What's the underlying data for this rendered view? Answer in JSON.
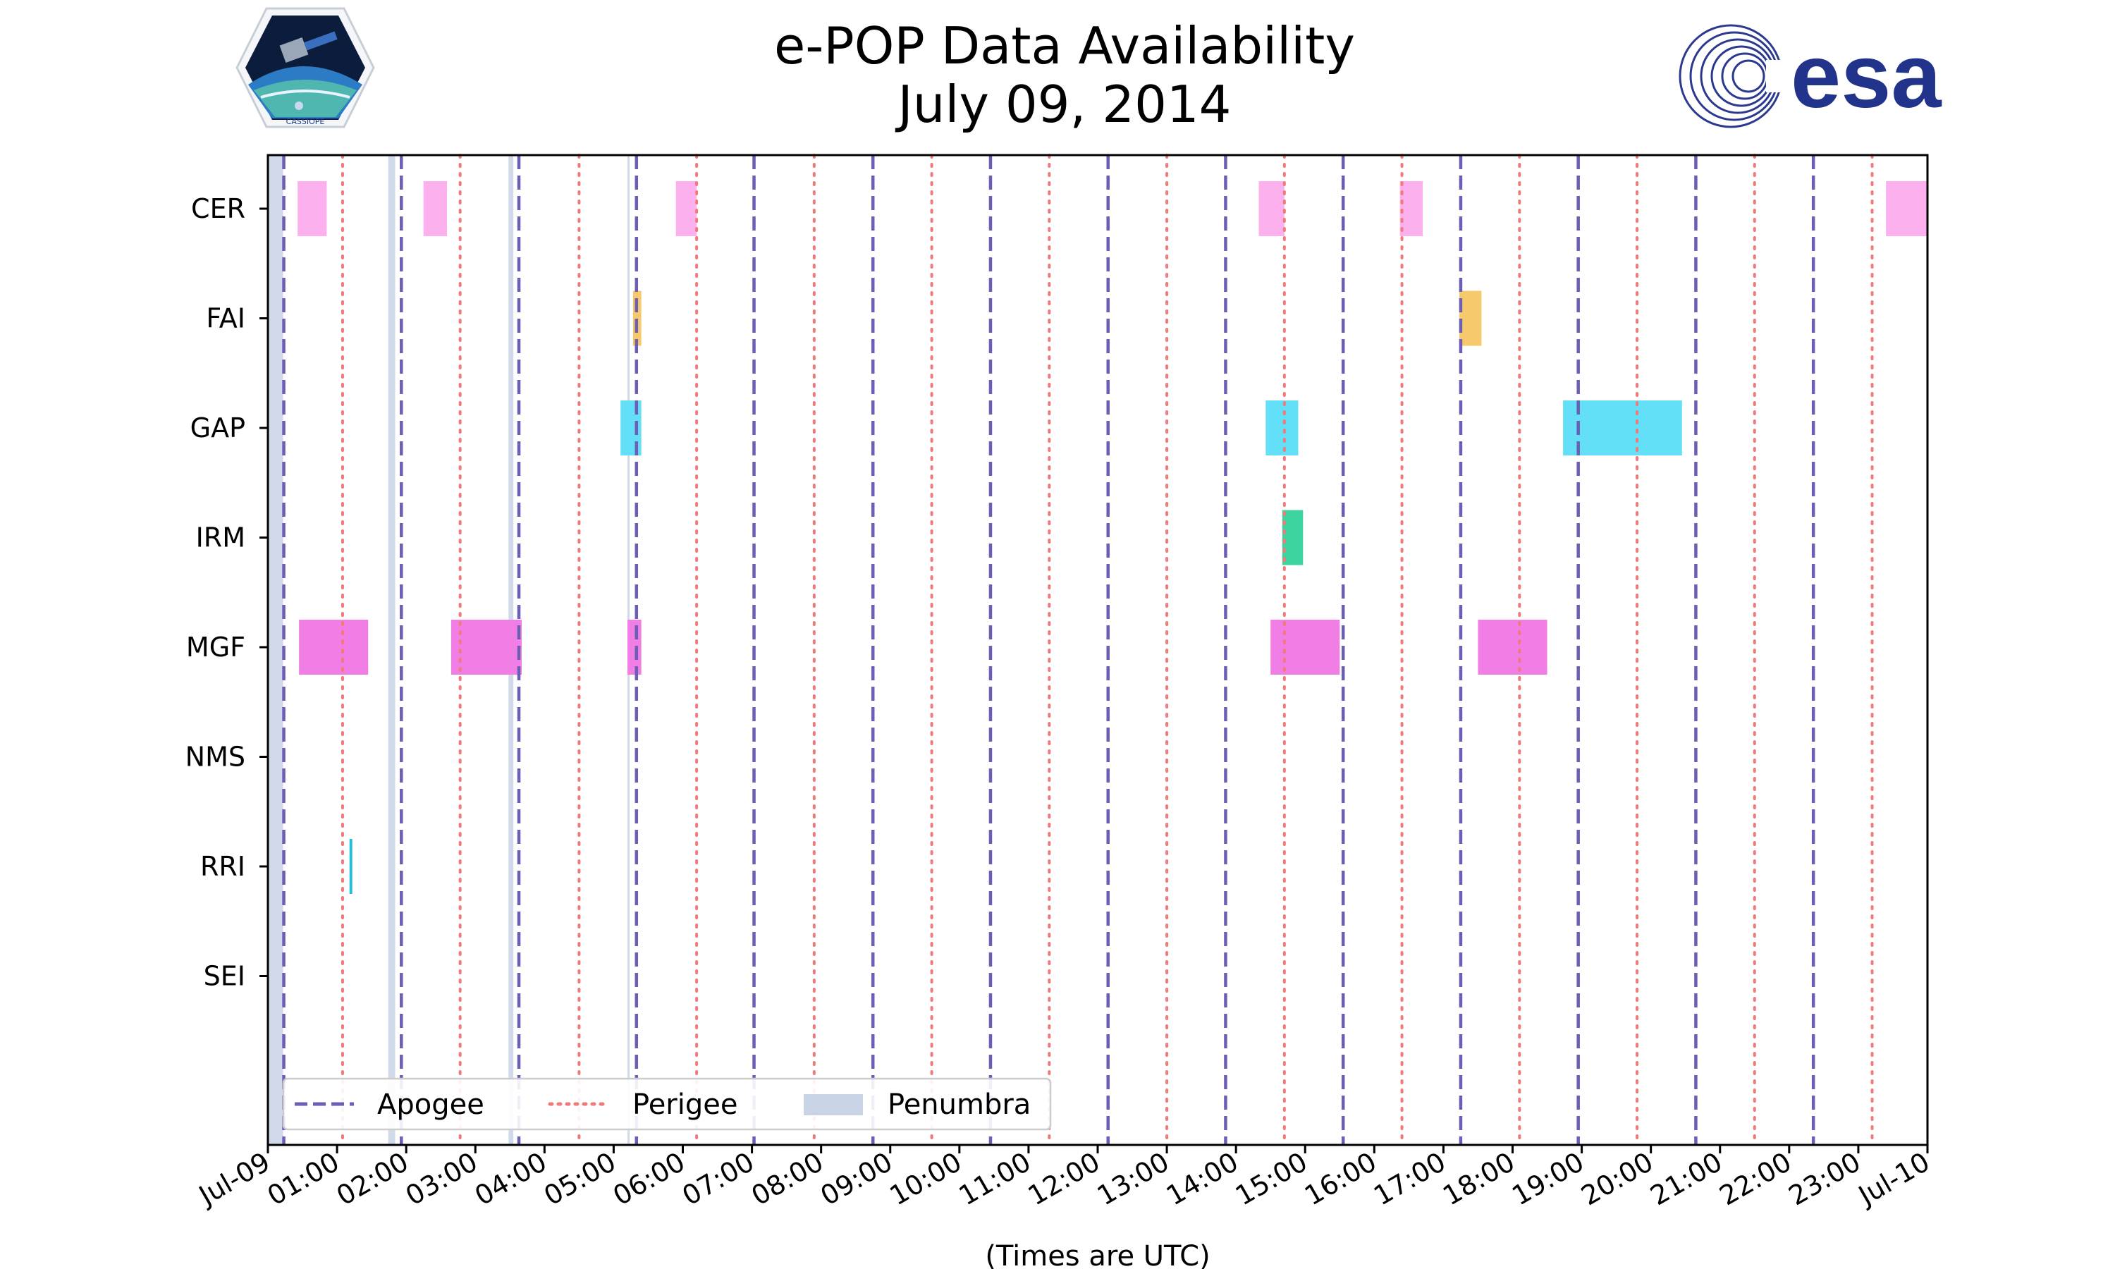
{
  "chart_data": {
    "type": "timeline",
    "title": "e-POP Data Availability",
    "subtitle": "July 09, 2014",
    "xlabel": "(Times are UTC)",
    "x_range_hours": [
      0,
      24
    ],
    "x_tick_labels": [
      "Jul-09",
      "01:00",
      "02:00",
      "03:00",
      "04:00",
      "05:00",
      "06:00",
      "07:00",
      "08:00",
      "09:00",
      "10:00",
      "11:00",
      "12:00",
      "13:00",
      "14:00",
      "15:00",
      "16:00",
      "17:00",
      "18:00",
      "19:00",
      "20:00",
      "21:00",
      "22:00",
      "23:00",
      "Jul-10"
    ],
    "instruments": [
      "CER",
      "FAI",
      "GAP",
      "IRM",
      "MGF",
      "NMS",
      "RRI",
      "SEI"
    ],
    "colors": {
      "CER": "#fcb1ee",
      "FAI": "#f6c96c",
      "GAP": "#63dff7",
      "IRM": "#3dd4a0",
      "MGF": "#f07ee4",
      "RRI": "#22bfd8",
      "apogee": "#6c5db5",
      "perigee": "#f07a7a",
      "penumbra": "#c8d4e6"
    },
    "availability": [
      {
        "instrument": "CER",
        "start": 0.43,
        "end": 0.85
      },
      {
        "instrument": "CER",
        "start": 2.25,
        "end": 2.59
      },
      {
        "instrument": "CER",
        "start": 5.9,
        "end": 6.2
      },
      {
        "instrument": "CER",
        "start": 14.33,
        "end": 14.7
      },
      {
        "instrument": "CER",
        "start": 16.37,
        "end": 16.7
      },
      {
        "instrument": "CER",
        "start": 23.4,
        "end": 24.0
      },
      {
        "instrument": "FAI",
        "start": 5.28,
        "end": 5.4
      },
      {
        "instrument": "FAI",
        "start": 17.23,
        "end": 17.55
      },
      {
        "instrument": "GAP",
        "start": 5.1,
        "end": 5.4
      },
      {
        "instrument": "GAP",
        "start": 14.43,
        "end": 14.9
      },
      {
        "instrument": "GAP",
        "start": 18.73,
        "end": 20.45
      },
      {
        "instrument": "IRM",
        "start": 14.67,
        "end": 14.97
      },
      {
        "instrument": "MGF",
        "start": 0.45,
        "end": 1.45
      },
      {
        "instrument": "MGF",
        "start": 2.65,
        "end": 3.67
      },
      {
        "instrument": "MGF",
        "start": 5.2,
        "end": 5.4
      },
      {
        "instrument": "MGF",
        "start": 14.5,
        "end": 15.5
      },
      {
        "instrument": "MGF",
        "start": 17.5,
        "end": 18.5
      },
      {
        "instrument": "RRI",
        "start": 1.18,
        "end": 1.22
      }
    ],
    "apogee_hours": [
      0.23,
      1.93,
      3.63,
      5.33,
      7.03,
      8.75,
      10.45,
      12.15,
      13.85,
      15.55,
      17.25,
      18.95,
      20.65,
      22.35
    ],
    "perigee_hours": [
      1.08,
      2.78,
      4.5,
      6.2,
      7.9,
      9.6,
      11.3,
      13.0,
      14.7,
      16.4,
      18.1,
      19.8,
      21.5,
      23.2
    ],
    "penumbra": [
      {
        "start": 0.0,
        "end": 0.22
      },
      {
        "start": 1.74,
        "end": 1.84
      },
      {
        "start": 3.48,
        "end": 3.55
      },
      {
        "start": 5.2,
        "end": 5.23
      }
    ],
    "legend": {
      "position": "lower-left",
      "entries": [
        "Apogee",
        "Perigee",
        "Penumbra"
      ]
    }
  },
  "logos": {
    "left": "CASSIOPE",
    "right": "esa"
  }
}
